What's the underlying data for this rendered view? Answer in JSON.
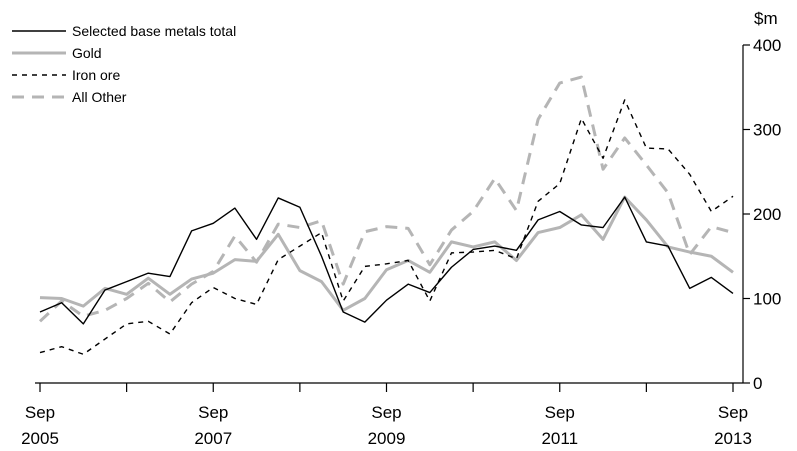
{
  "chart_data": {
    "type": "line",
    "y_unit": "$m",
    "ylim": [
      0,
      400
    ],
    "yticks": [
      0,
      100,
      200,
      300,
      400
    ],
    "x_start": "Sep 2005",
    "x_end": "Sep 2013",
    "x_major_ticks": [
      {
        "month": "Sep",
        "year": "2005"
      },
      {
        "month": "Sep",
        "year": "2007"
      },
      {
        "month": "Sep",
        "year": "2009"
      },
      {
        "month": "Sep",
        "year": "2011"
      },
      {
        "month": "Sep",
        "year": "2013"
      }
    ],
    "x_quarters": [
      "Sep 2005",
      "Dec 2005",
      "Mar 2006",
      "Jun 2006",
      "Sep 2006",
      "Dec 2006",
      "Mar 2007",
      "Jun 2007",
      "Sep 2007",
      "Dec 2007",
      "Mar 2008",
      "Jun 2008",
      "Sep 2008",
      "Dec 2008",
      "Mar 2009",
      "Jun 2009",
      "Sep 2009",
      "Dec 2009",
      "Mar 2010",
      "Jun 2010",
      "Sep 2010",
      "Dec 2010",
      "Mar 2011",
      "Jun 2011",
      "Sep 2011",
      "Dec 2011",
      "Mar 2012",
      "Jun 2012",
      "Sep 2012",
      "Dec 2012",
      "Mar 2013",
      "Jun 2013",
      "Sep 2013"
    ],
    "legend_position": "top-left",
    "grid": false,
    "series": [
      {
        "name": "Selected base metals total",
        "style": "solid",
        "color": "#000000",
        "values": [
          84,
          95,
          70,
          110,
          120,
          130,
          126,
          180,
          189,
          207,
          170,
          219,
          208,
          150,
          84,
          72,
          98,
          117,
          107,
          137,
          158,
          162,
          157,
          193,
          203,
          187,
          184,
          220,
          167,
          162,
          112,
          125,
          106
        ]
      },
      {
        "name": "Gold",
        "style": "solid",
        "color": "#b5b5b5",
        "values": [
          101,
          100,
          91,
          112,
          105,
          124,
          105,
          123,
          130,
          146,
          144,
          176,
          133,
          120,
          86,
          100,
          134,
          145,
          131,
          167,
          161,
          167,
          145,
          178,
          184,
          199,
          170,
          220,
          193,
          161,
          155,
          150,
          131
        ]
      },
      {
        "name": "Iron ore",
        "style": "dashed",
        "color": "#000000",
        "values": [
          36,
          43,
          34,
          52,
          70,
          73,
          58,
          95,
          113,
          100,
          93,
          146,
          162,
          178,
          97,
          138,
          141,
          145,
          97,
          154,
          155,
          157,
          147,
          215,
          236,
          313,
          266,
          335,
          278,
          277,
          247,
          203,
          221
        ]
      },
      {
        "name": "All Other",
        "style": "long-dashed",
        "color": "#b5b5b5",
        "values": [
          73,
          97,
          79,
          86,
          100,
          118,
          96,
          117,
          132,
          174,
          143,
          188,
          184,
          192,
          117,
          179,
          185,
          183,
          140,
          181,
          203,
          242,
          204,
          312,
          355,
          362,
          253,
          290,
          258,
          225,
          152,
          185,
          178
        ]
      }
    ]
  }
}
